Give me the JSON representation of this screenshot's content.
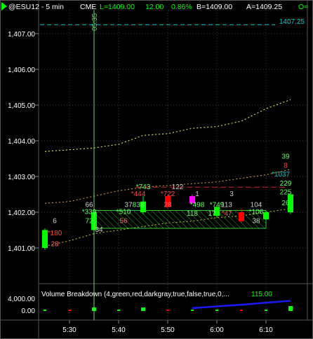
{
  "header": {
    "symbol": "@ESU12 - 5 min",
    "exchange": "CME",
    "last": "L=1409.00",
    "change": "12.00",
    "change_pct": "0.86%",
    "bid": "B=1409.00",
    "ask": "A=1409.25",
    "suffix": "O="
  },
  "cursor_time": "05:35",
  "ref_line_label": "1407.25",
  "price_axis": [
    "1,407.00",
    "1,406.00",
    "1,405.00",
    "1,404.00",
    "1,403.00",
    "1,402.00",
    "1,401.00"
  ],
  "volume_panel": {
    "title": "Volume Breakdown (4,green,red,darkgray,true,false,true,0,...",
    "value": "115.00",
    "axis": [
      "4,000.00",
      "0.00"
    ]
  },
  "time_axis": [
    "5:30",
    "5:40",
    "5:50",
    "6:00",
    "6:10"
  ],
  "colors": {
    "up": "#00ff00",
    "down": "#ff0000",
    "magenta": "#ff00ff",
    "cyan": "#00cccc",
    "volume_line": "#1a1aff",
    "grid": "#404040",
    "cursor": "#66dd66"
  },
  "chart_data": {
    "type": "line",
    "ylim": [
      1400.5,
      1407.5
    ],
    "ref_line": 1407.25,
    "candles": [
      {
        "t": "5:25",
        "o": 1401.0,
        "h": 1401.55,
        "l": 1400.95,
        "c": 1401.5,
        "dir": "up"
      },
      {
        "t": "5:35",
        "o": 1401.5,
        "h": 1402.2,
        "l": 1401.45,
        "c": 1402.0,
        "dir": "up"
      },
      {
        "t": "5:45",
        "o": 1402.0,
        "h": 1402.45,
        "l": 1401.95,
        "c": 1402.3,
        "dir": "up"
      },
      {
        "t": "5:50",
        "o": 1402.45,
        "h": 1402.5,
        "l": 1402.1,
        "c": 1402.15,
        "dir": "down"
      },
      {
        "t": "5:55",
        "o": 1402.45,
        "h": 1402.5,
        "l": 1402.25,
        "c": 1402.25,
        "dir": "magenta"
      },
      {
        "t": "6:00",
        "o": 1401.9,
        "h": 1402.2,
        "l": 1401.85,
        "c": 1402.15,
        "dir": "up"
      },
      {
        "t": "6:05",
        "o": 1402.0,
        "h": 1402.1,
        "l": 1401.7,
        "c": 1401.75,
        "dir": "down"
      },
      {
        "t": "6:10",
        "o": 1401.8,
        "h": 1402.05,
        "l": 1401.75,
        "c": 1402.0,
        "dir": "up"
      },
      {
        "t": "6:15",
        "o": 1402.0,
        "h": 1402.5,
        "l": 1401.95,
        "c": 1402.5,
        "dir": "up"
      }
    ],
    "upper_band": [
      {
        "t": "5:25",
        "v": 1403.7
      },
      {
        "t": "5:30",
        "v": 1403.75
      },
      {
        "t": "5:35",
        "v": 1403.8
      },
      {
        "t": "5:40",
        "v": 1403.9
      },
      {
        "t": "5:45",
        "v": 1404.15
      },
      {
        "t": "5:50",
        "v": 1404.2
      },
      {
        "t": "5:55",
        "v": 1404.35
      },
      {
        "t": "6:00",
        "v": 1404.4
      },
      {
        "t": "6:05",
        "v": 1404.55
      },
      {
        "t": "6:10",
        "v": 1404.9
      },
      {
        "t": "6:15",
        "v": 1405.15
      }
    ],
    "mid_band": [
      {
        "t": "5:25",
        "v": 1402.25
      },
      {
        "t": "5:30",
        "v": 1402.3
      },
      {
        "t": "5:35",
        "v": 1402.45
      },
      {
        "t": "5:40",
        "v": 1402.6
      },
      {
        "t": "5:45",
        "v": 1402.7
      },
      {
        "t": "5:50",
        "v": 1402.75
      },
      {
        "t": "5:55",
        "v": 1402.8
      },
      {
        "t": "6:00",
        "v": 1402.85
      },
      {
        "t": "6:05",
        "v": 1402.95
      },
      {
        "t": "6:10",
        "v": 1403.05
      },
      {
        "t": "6:15",
        "v": 1403.2
      }
    ],
    "lower_band": [
      {
        "t": "5:25",
        "v": 1401.05
      },
      {
        "t": "5:30",
        "v": 1401.2
      },
      {
        "t": "5:35",
        "v": 1401.4
      },
      {
        "t": "5:40",
        "v": 1401.5
      },
      {
        "t": "5:45",
        "v": 1401.6
      },
      {
        "t": "5:50",
        "v": 1401.7
      },
      {
        "t": "5:55",
        "v": 1401.75
      },
      {
        "t": "6:00",
        "v": 1401.85
      },
      {
        "t": "6:05",
        "v": 1401.9
      },
      {
        "t": "6:10",
        "v": 1402.0
      },
      {
        "t": "6:15",
        "v": 1402.1
      }
    ],
    "value_area": {
      "t_start": "5:35",
      "t_end": "6:10",
      "low": 1401.55,
      "high": 1402.05
    },
    "resistance_line": {
      "t_start": "5:45",
      "t_end": "6:15",
      "v": 1402.7
    },
    "annotations": [
      {
        "text": "6",
        "t": "5:27",
        "v": 1401.7,
        "color": "#cccccc"
      },
      {
        "text": "*180",
        "t": "5:27",
        "v": 1401.35,
        "color": "#ff4444"
      },
      {
        "text": "28",
        "t": "5:27",
        "v": 1401.05,
        "color": "#ff6666"
      },
      {
        "text": "66",
        "t": "5:34",
        "v": 1402.15,
        "color": "#cccccc"
      },
      {
        "text": "*339",
        "t": "5:34",
        "v": 1401.95,
        "color": "#66ff66"
      },
      {
        "text": "72",
        "t": "5:34",
        "v": 1401.7,
        "color": "#66ff66"
      },
      {
        "text": "34",
        "t": "5:36",
        "v": 1401.45,
        "color": "#cccccc"
      },
      {
        "text": "37",
        "t": "5:42",
        "v": 1402.15,
        "color": "#cccccc"
      },
      {
        "text": "*510",
        "t": "5:41",
        "v": 1401.95,
        "color": "#66ff66"
      },
      {
        "text": "56",
        "t": "5:41",
        "v": 1401.7,
        "color": "#ff6666"
      },
      {
        "text": "*743",
        "t": "5:45",
        "v": 1402.65,
        "color": "#66ff66"
      },
      {
        "text": "*444",
        "t": "5:44",
        "v": 1402.45,
        "color": "#ff4444"
      },
      {
        "text": "838",
        "t": "5:44",
        "v": 1402.15,
        "color": "#66ff66"
      },
      {
        "text": "122",
        "t": "5:52",
        "v": 1402.65,
        "color": "#cccccc"
      },
      {
        "text": "*722",
        "t": "5:50",
        "v": 1402.45,
        "color": "#ff4444"
      },
      {
        "text": "28",
        "t": "5:50",
        "v": 1402.15,
        "color": "#ff6666"
      },
      {
        "text": "1",
        "t": "5:56",
        "v": 1402.45,
        "color": "#cccccc"
      },
      {
        "text": "*498",
        "t": "5:56",
        "v": 1402.15,
        "color": "#66ff66"
      },
      {
        "text": "118",
        "t": "5:55",
        "v": 1401.9,
        "color": "#66ff66"
      },
      {
        "text": "*749",
        "t": "5:60",
        "v": 1402.15,
        "color": "#66ff66"
      },
      {
        "text": "17",
        "t": "5:59",
        "v": 1401.9,
        "color": "#66ff66"
      },
      {
        "text": "3",
        "t": "6:03",
        "v": 1402.45,
        "color": "#cccccc"
      },
      {
        "text": "113",
        "t": "6:02",
        "v": 1402.15,
        "color": "#cccccc"
      },
      {
        "text": "*47",
        "t": "6:02",
        "v": 1401.9,
        "color": "#ff4444"
      },
      {
        "text": "104",
        "t": "6:08",
        "v": 1402.15,
        "color": "#cccccc"
      },
      {
        "text": "*106",
        "t": "6:08",
        "v": 1401.95,
        "color": "#66ff66"
      },
      {
        "text": "38",
        "t": "6:08",
        "v": 1401.7,
        "color": "#cccccc"
      },
      {
        "text": "39",
        "t": "6:14",
        "v": 1403.5,
        "color": "#66ff66"
      },
      {
        "text": "8",
        "t": "6:14",
        "v": 1403.25,
        "color": "#ff4444"
      },
      {
        "text": "*1037",
        "t": "6:13",
        "v": 1403.0,
        "color": "#00cccc"
      },
      {
        "text": "229",
        "t": "6:14",
        "v": 1402.75,
        "color": "#66ff66"
      },
      {
        "text": "225",
        "t": "6:14",
        "v": 1402.5,
        "color": "#66ff66"
      },
      {
        "text": "26",
        "t": "6:14",
        "v": 1402.2,
        "color": "#66ff66"
      }
    ],
    "volume_line": [
      {
        "t": "5:55",
        "v": 800
      },
      {
        "t": "6:00",
        "v": 1500
      },
      {
        "t": "6:05",
        "v": 2100
      },
      {
        "t": "6:10",
        "v": 2900
      },
      {
        "t": "6:15",
        "v": 3600
      }
    ],
    "volume_bars": [
      {
        "t": "5:25",
        "v": 0,
        "c": "up"
      },
      {
        "t": "5:30",
        "v": 0,
        "c": "down"
      },
      {
        "t": "5:35",
        "v": 0,
        "c": "up"
      },
      {
        "t": "5:40",
        "v": 0,
        "c": "up"
      },
      {
        "t": "5:45",
        "v": 0,
        "c": "up"
      },
      {
        "t": "5:50",
        "v": 0,
        "c": "down"
      },
      {
        "t": "5:55",
        "v": 0,
        "c": "up"
      },
      {
        "t": "6:00",
        "v": 0,
        "c": "up"
      },
      {
        "t": "6:05",
        "v": 0,
        "c": "down"
      },
      {
        "t": "6:10",
        "v": 0,
        "c": "up"
      },
      {
        "t": "6:15",
        "v": 0,
        "c": "up"
      }
    ],
    "cursor_t": "5:35"
  }
}
